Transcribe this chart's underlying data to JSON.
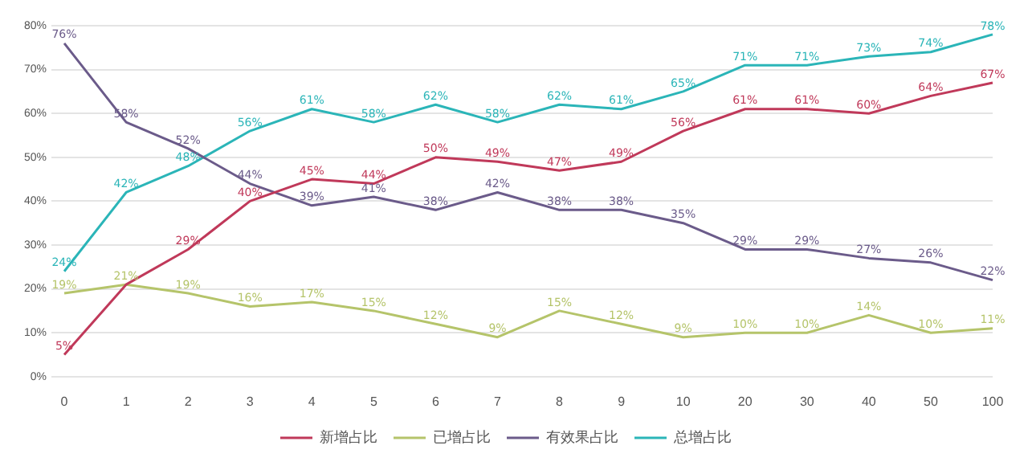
{
  "chart_data": {
    "type": "line",
    "categories": [
      "0",
      "1",
      "2",
      "3",
      "4",
      "5",
      "6",
      "7",
      "8",
      "9",
      "10",
      "20",
      "30",
      "40",
      "50",
      "100"
    ],
    "ylim": [
      0,
      80
    ],
    "yticks": [
      {
        "value": 0,
        "label": "0%"
      },
      {
        "value": 10,
        "label": "10%"
      },
      {
        "value": 20,
        "label": "20%"
      },
      {
        "value": 30,
        "label": "30%"
      },
      {
        "value": 40,
        "label": "40%"
      },
      {
        "value": 50,
        "label": "50%"
      },
      {
        "value": 60,
        "label": "60%"
      },
      {
        "value": 70,
        "label": "70%"
      },
      {
        "value": 80,
        "label": "80%"
      }
    ],
    "grid": "y",
    "legend": "bottom",
    "marker": "none",
    "line_style": "solid",
    "series": [
      {
        "name": "新增占比",
        "color": "#c0395a",
        "values": [
          5,
          21,
          29,
          40,
          45,
          44,
          50,
          49,
          47,
          49,
          56,
          61,
          61,
          60,
          64,
          67
        ],
        "value_labels": [
          "5%",
          null,
          "29%",
          "40%",
          "45%",
          "44%",
          "50%",
          "49%",
          "47%",
          "49%",
          "56%",
          "61%",
          "61%",
          "60%",
          "64%",
          "67%"
        ]
      },
      {
        "name": "已增占比",
        "color": "#b5c46a",
        "values": [
          19,
          21,
          19,
          16,
          17,
          15,
          12,
          9,
          15,
          12,
          9,
          10,
          10,
          14,
          10,
          11
        ],
        "value_labels": [
          "19%",
          "21%",
          "19%",
          "16%",
          "17%",
          "15%",
          "12%",
          "9%",
          "15%",
          "12%",
          "9%",
          "10%",
          "10%",
          "14%",
          "10%",
          "11%"
        ]
      },
      {
        "name": "有效果占比",
        "color": "#6b5b8a",
        "values": [
          76,
          58,
          52,
          44,
          39,
          41,
          38,
          42,
          38,
          38,
          35,
          29,
          29,
          27,
          26,
          22
        ],
        "value_labels": [
          "76%",
          "58%",
          "52%",
          "44%",
          "39%",
          "41%",
          "38%",
          "42%",
          "38%",
          "38%",
          "35%",
          "29%",
          "29%",
          "27%",
          "26%",
          "22%"
        ]
      },
      {
        "name": "总增占比",
        "color": "#2bb5b8",
        "values": [
          24,
          42,
          48,
          56,
          61,
          58,
          62,
          58,
          62,
          61,
          65,
          71,
          71,
          73,
          74,
          78
        ],
        "value_labels": [
          "24%",
          "42%",
          "48%",
          "56%",
          "61%",
          "58%",
          "62%",
          "58%",
          "62%",
          "61%",
          "65%",
          "71%",
          "71%",
          "73%",
          "74%",
          "78%"
        ]
      }
    ]
  }
}
